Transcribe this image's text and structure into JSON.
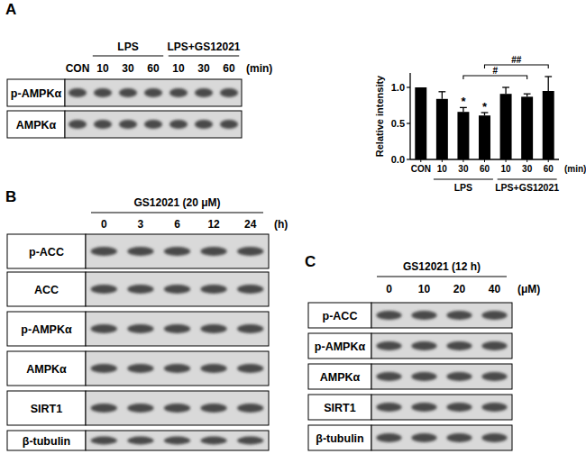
{
  "chart_data": {
    "type": "bar",
    "categories": [
      "CON",
      "10",
      "30",
      "60",
      "10",
      "30",
      "60"
    ],
    "values": [
      1.0,
      0.84,
      0.66,
      0.61,
      0.91,
      0.87,
      0.95
    ],
    "errors": [
      0,
      0.1,
      0.06,
      0.04,
      0.09,
      0.04,
      0.2
    ],
    "color": "#000000",
    "ylim": [
      0,
      1.2
    ],
    "yticks": [
      {
        "value": 0,
        "label": "0.0"
      },
      {
        "value": 0.5,
        "label": "0.5"
      },
      {
        "value": 1,
        "label": "1.0"
      }
    ],
    "y_label": "Relative intensity",
    "group_labels": [
      "LPS",
      "LPS+GS12021"
    ],
    "x_unit": "(min)",
    "significance": [
      null,
      null,
      "*",
      "*",
      null,
      null,
      null
    ],
    "comparisons": [
      {
        "from": 2,
        "to": 5,
        "label": "#"
      },
      {
        "from": 3,
        "to": 6,
        "label": "##"
      }
    ],
    "grid": false
  },
  "figure": {
    "panels": [
      {
        "letter": "A",
        "lanes": [
          "CON"
        ],
        "groups": [
          {
            "label": "LPS",
            "lanes": [
              "10",
              "30",
              "60"
            ]
          },
          {
            "label": "LPS+GS12021",
            "lanes": [
              "10",
              "30",
              "60"
            ]
          }
        ],
        "unit": "(min)",
        "rows": [
          "p-AMPKα",
          "AMPKα"
        ]
      },
      {
        "letter": "B",
        "header": "GS12021 (20 μM)",
        "lanes": [
          "0",
          "3",
          "6",
          "12",
          "24"
        ],
        "unit": "(h)",
        "rows": [
          "p-ACC",
          "ACC",
          "p-AMPKα",
          "AMPKα",
          "SIRT1",
          "β-tubulin"
        ]
      },
      {
        "letter": "C",
        "header": "GS12021 (12 h)",
        "lanes": [
          "0",
          "10",
          "20",
          "40"
        ],
        "unit": "(μM)",
        "rows": [
          "p-ACC",
          "p-AMPKα",
          "AMPKα",
          "SIRT1",
          "β-tubulin"
        ]
      }
    ]
  }
}
